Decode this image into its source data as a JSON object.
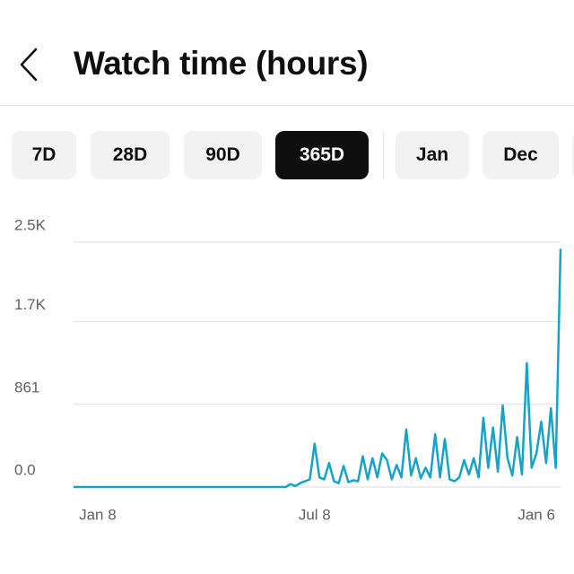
{
  "header": {
    "title": "Watch time (hours)"
  },
  "tabs": [
    {
      "label": "7D"
    },
    {
      "label": "28D"
    },
    {
      "label": "90D"
    },
    {
      "label": "365D",
      "selected": true
    },
    {
      "label": "Jan"
    },
    {
      "label": "Dec"
    }
  ],
  "chart_data": {
    "type": "line",
    "color": "#17a3c9",
    "grid": true,
    "ylim": [
      0,
      2549
    ],
    "yticks": [
      {
        "value": 0,
        "label": "0.0"
      },
      861,
      {
        "value": 1722,
        "label": "1.7K"
      },
      {
        "value": 2549,
        "label": "2.5K"
      }
    ],
    "categories": [
      null,
      null,
      null,
      null,
      null,
      "Jan 8",
      null,
      null,
      null,
      null,
      null,
      null,
      null,
      null,
      null,
      null,
      null,
      null,
      null,
      null,
      null,
      null,
      null,
      null,
      null,
      null,
      null,
      null,
      null,
      null,
      null,
      null,
      null,
      null,
      null,
      null,
      null,
      null,
      null,
      null,
      null,
      null,
      null,
      null,
      null,
      null,
      null,
      null,
      null,
      null,
      "Jul 8",
      null,
      null,
      null,
      null,
      null,
      null,
      null,
      null,
      null,
      null,
      null,
      null,
      null,
      null,
      null,
      null,
      null,
      null,
      null,
      null,
      null,
      null,
      null,
      null,
      null,
      null,
      null,
      null,
      null,
      null,
      null,
      null,
      null,
      null,
      null,
      null,
      null,
      null,
      null,
      null,
      null,
      null,
      null,
      null,
      null,
      "Jan 6",
      null,
      null,
      null,
      null,
      null
    ],
    "values": [
      0,
      0,
      0,
      0,
      0,
      0,
      0,
      0,
      0,
      0,
      0,
      0,
      0,
      0,
      0,
      0,
      0,
      0,
      0,
      0,
      0,
      0,
      0,
      0,
      0,
      0,
      0,
      0,
      0,
      0,
      0,
      0,
      0,
      0,
      0,
      0,
      0,
      0,
      0,
      0,
      0,
      0,
      0,
      0,
      0,
      30,
      10,
      40,
      60,
      80,
      450,
      100,
      80,
      250,
      60,
      40,
      220,
      50,
      70,
      60,
      320,
      80,
      300,
      100,
      350,
      280,
      80,
      230,
      100,
      600,
      120,
      300,
      90,
      200,
      100,
      550,
      100,
      500,
      80,
      60,
      100,
      280,
      130,
      300,
      100,
      720,
      200,
      620,
      160,
      850,
      300,
      120,
      520,
      130,
      1290,
      200,
      350,
      680,
      250,
      820,
      200,
      2480
    ]
  }
}
